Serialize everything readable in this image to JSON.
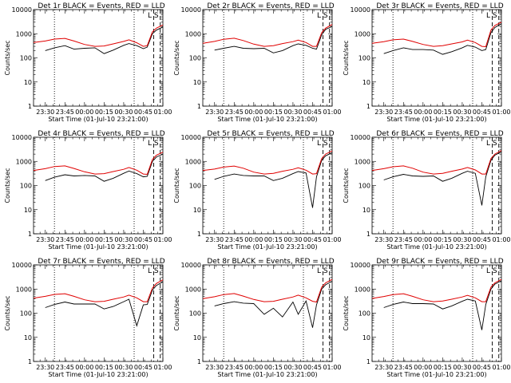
{
  "chart_data": {
    "type": "line",
    "grid": false,
    "panels_layout": "3x3",
    "x_ticks": [
      "23:30",
      "23:45",
      "00:00",
      "00:15",
      "00:30",
      "00:45",
      "01:00"
    ],
    "x_range": [
      "23:21",
      "01:00"
    ],
    "y_scale": "log",
    "y_ticks": [
      "1",
      "10",
      "100",
      "1000",
      "10000"
    ],
    "y_range": [
      1,
      10000
    ],
    "xlabel": "Start Time (01-Jul-10 23:21:00)",
    "ylabel": "Counts/sec",
    "annotations": [
      "L",
      "S"
    ],
    "colors": {
      "events": "#000000",
      "lld": "#e00000"
    },
    "vertical_markers": {
      "dotted": [
        "23:37",
        "00:38"
      ],
      "dashed": [
        "00:53",
        "00:58"
      ]
    },
    "series_names": [
      "Events",
      "LLD"
    ],
    "times": [
      "23:21",
      "23:30",
      "23:37",
      "23:45",
      "23:52",
      "00:00",
      "00:08",
      "00:15",
      "00:22",
      "00:30",
      "00:34",
      "00:40",
      "00:45",
      "00:48",
      "00:52",
      "00:55",
      "01:00"
    ],
    "panels": [
      {
        "title": "Det 1r BLACK = Events, RED = LLD",
        "lld": [
          430,
          500,
          600,
          640,
          500,
          360,
          300,
          310,
          380,
          480,
          560,
          420,
          300,
          320,
          1200,
          1700,
          2300
        ],
        "events": [
          null,
          200,
          260,
          320,
          230,
          250,
          260,
          150,
          210,
          330,
          390,
          320,
          240,
          280,
          1000,
          1400,
          1900
        ]
      },
      {
        "title": "Det 2r BLACK = Events, RED = LLD",
        "lld": [
          400,
          480,
          590,
          650,
          520,
          370,
          300,
          320,
          390,
          470,
          540,
          430,
          300,
          300,
          1100,
          1700,
          2400
        ],
        "events": [
          null,
          210,
          250,
          300,
          250,
          240,
          250,
          160,
          200,
          320,
          380,
          330,
          250,
          230,
          900,
          1500,
          2000
        ]
      },
      {
        "title": "Det 3r BLACK = Events, RED = LLD",
        "lld": [
          400,
          470,
          560,
          600,
          480,
          360,
          300,
          320,
          380,
          460,
          540,
          430,
          300,
          290,
          1400,
          2200,
          3000
        ],
        "events": [
          null,
          150,
          200,
          260,
          220,
          220,
          210,
          140,
          180,
          260,
          330,
          280,
          200,
          220,
          1100,
          1800,
          2600
        ]
      },
      {
        "title": "Det 4r BLACK = Events, RED = LLD",
        "lld": [
          420,
          500,
          610,
          650,
          510,
          370,
          300,
          310,
          380,
          470,
          560,
          430,
          300,
          290,
          1200,
          1800,
          2400
        ],
        "events": [
          null,
          160,
          220,
          280,
          250,
          260,
          250,
          150,
          200,
          320,
          400,
          310,
          230,
          240,
          1000,
          1500,
          2000
        ]
      },
      {
        "title": "Det 5r BLACK = Events, RED = LLD",
        "lld": [
          420,
          480,
          580,
          640,
          520,
          360,
          300,
          320,
          390,
          470,
          540,
          430,
          300,
          310,
          1300,
          2000,
          2700
        ],
        "events": [
          null,
          180,
          240,
          300,
          260,
          250,
          250,
          160,
          200,
          310,
          380,
          330,
          12,
          230,
          1100,
          1700,
          2300
        ]
      },
      {
        "title": "Det 6r BLACK = Events, RED = LLD",
        "lld": [
          420,
          500,
          600,
          650,
          520,
          360,
          300,
          320,
          390,
          480,
          560,
          440,
          300,
          300,
          1300,
          2000,
          2800
        ],
        "events": [
          null,
          170,
          230,
          290,
          250,
          240,
          250,
          150,
          200,
          320,
          390,
          320,
          15,
          230,
          1100,
          1800,
          2500
        ]
      },
      {
        "title": "Det 7r BLACK = Events, RED = LLD",
        "lld": [
          420,
          500,
          600,
          640,
          500,
          360,
          300,
          310,
          380,
          470,
          560,
          430,
          300,
          300,
          1100,
          1700,
          2400
        ],
        "events": [
          null,
          170,
          230,
          290,
          240,
          240,
          240,
          150,
          190,
          300,
          380,
          30,
          220,
          230,
          900,
          1400,
          2000
        ]
      },
      {
        "title": "Det 8r BLACK = Events, RED = LLD",
        "lld": [
          400,
          480,
          590,
          650,
          510,
          370,
          300,
          310,
          380,
          470,
          560,
          430,
          310,
          290,
          1200,
          1800,
          2500
        ],
        "events": [
          null,
          200,
          250,
          300,
          260,
          250,
          90,
          160,
          70,
          290,
          90,
          320,
          25,
          220,
          1000,
          1500,
          2100
        ]
      },
      {
        "title": "Det 9r BLACK = Events, RED = LLD",
        "lld": [
          410,
          490,
          590,
          640,
          500,
          360,
          300,
          320,
          380,
          470,
          550,
          430,
          300,
          300,
          1200,
          1800,
          2500
        ],
        "events": [
          null,
          170,
          230,
          290,
          250,
          250,
          240,
          150,
          200,
          310,
          380,
          320,
          20,
          230,
          1000,
          1600,
          2200
        ]
      }
    ]
  }
}
